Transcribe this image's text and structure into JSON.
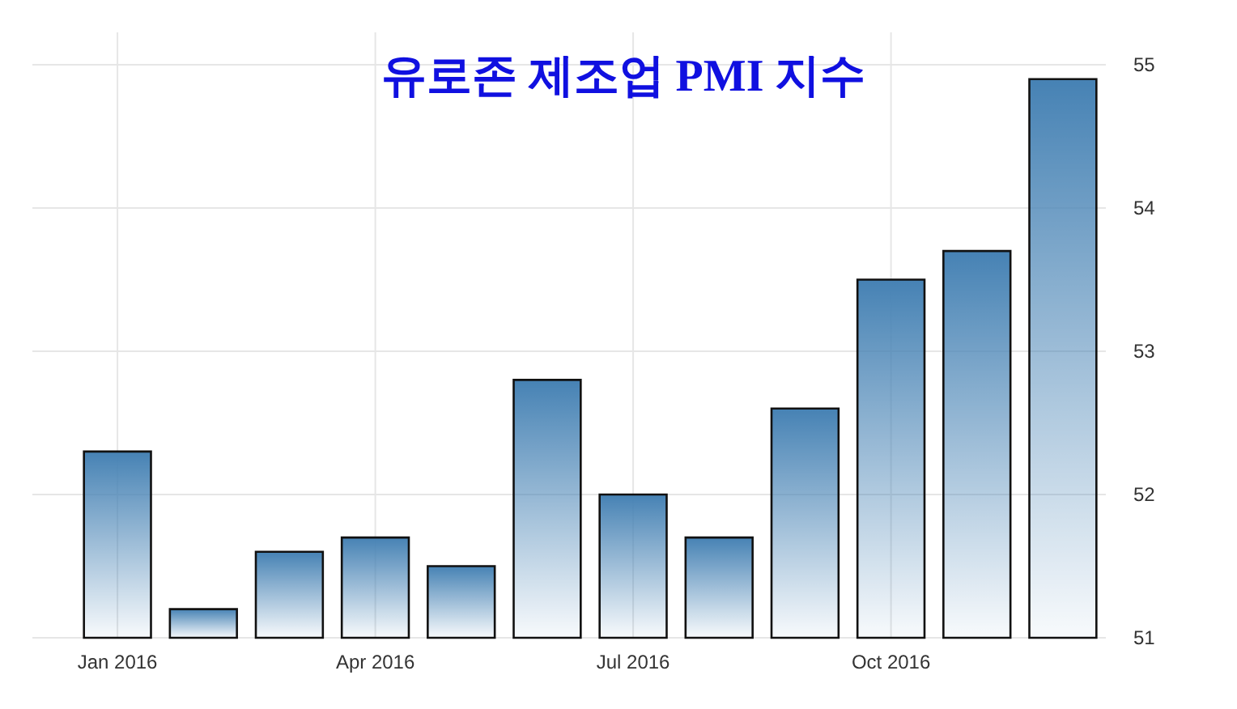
{
  "chart_data": {
    "type": "bar",
    "title": "유로존 제조업 PMI 지수",
    "categories": [
      "Jan 2016",
      null,
      null,
      "Apr 2016",
      null,
      null,
      "Jul 2016",
      null,
      null,
      "Oct 2016",
      null,
      null
    ],
    "values": [
      52.3,
      51.2,
      51.6,
      51.7,
      51.5,
      52.8,
      52.0,
      51.7,
      52.6,
      53.5,
      53.7,
      54.9
    ],
    "color": "#4682b4",
    "ylim": [
      51,
      55
    ],
    "yticks": [
      51,
      52,
      53,
      54,
      55
    ],
    "grid": true
  }
}
